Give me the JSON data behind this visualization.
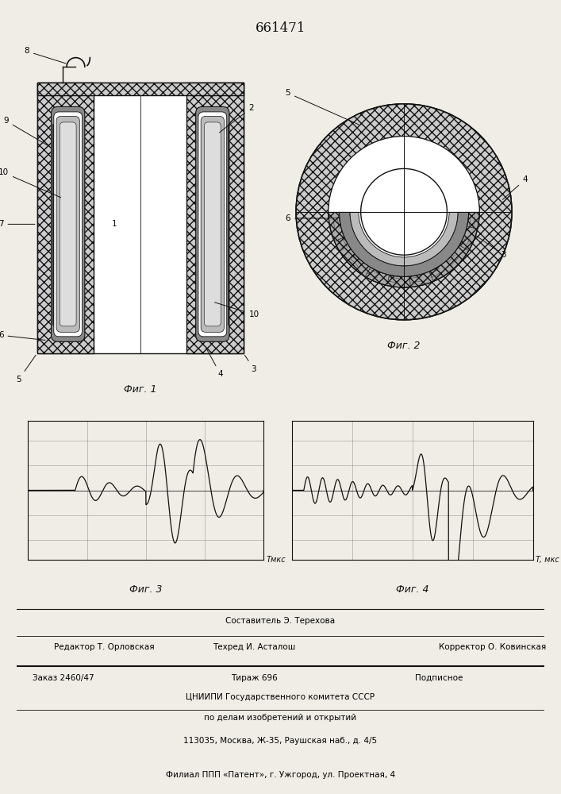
{
  "title": "661471",
  "paper_color": "#f0ede6",
  "line_color": "#111111",
  "fig1_label": "Фиг. 1",
  "fig2_label": "Фиг. 2",
  "fig3_label": "Фиг. 3",
  "fig4_label": "Фиг. 4",
  "t_mks_label": "Tмкс",
  "t_mks_label2": "T, мкс",
  "footer_line0": "Составитель Э. Терехова",
  "footer_line1a": "Редактор Т. Орловская",
  "footer_line1b": "Техред И. Асталош",
  "footer_line1c": "Корректор О. Ковинская",
  "footer_line2a": "Заказ 2460/47",
  "footer_line2b": "Тираж 696",
  "footer_line2c": "Подписное",
  "footer_line3": "ЦНИИПИ Государственного комитета СССР",
  "footer_line4": "по делам изобретений и открытий",
  "footer_line5": "113035, Москва, Ж-35, Раушская наб., д. 4/5",
  "footer_line6": "Филиал ППП «Патент», г. Ужгород, ул. Проектная, 4"
}
